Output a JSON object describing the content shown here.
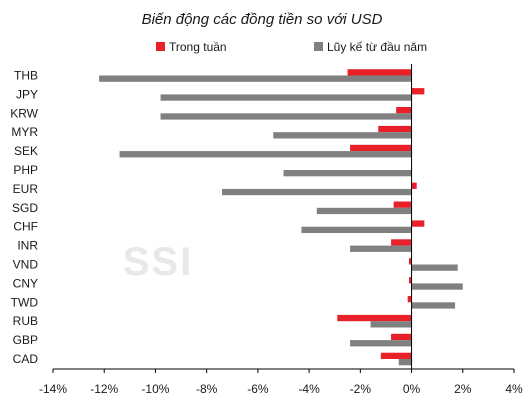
{
  "chart_data": {
    "type": "bar",
    "orientation": "horizontal",
    "title": "Biến động các đồng tiền so với USD",
    "watermark": "SSI",
    "categories": [
      "THB",
      "JPY",
      "KRW",
      "MYR",
      "SEK",
      "PHP",
      "EUR",
      "SGD",
      "CHF",
      "INR",
      "VND",
      "CNY",
      "TWD",
      "RUB",
      "GBP",
      "CAD"
    ],
    "series": [
      {
        "name": "Trong tuần",
        "color": "#e8202a",
        "values": [
          -2.5,
          0.5,
          -0.6,
          -1.3,
          -2.4,
          0.0,
          0.2,
          -0.7,
          0.5,
          -0.8,
          -0.1,
          -0.1,
          -0.15,
          -2.9,
          -0.8,
          -1.2
        ]
      },
      {
        "name": "Lũy kế từ đầu năm",
        "color": "#808080",
        "values": [
          -12.2,
          -9.8,
          -9.8,
          -5.4,
          -11.4,
          -5.0,
          -7.4,
          -3.7,
          -4.3,
          -2.4,
          1.8,
          2.0,
          1.7,
          -1.6,
          -2.4,
          -0.5
        ]
      }
    ],
    "xlim": [
      -14,
      4
    ],
    "xticks": [
      "-14%",
      "-12%",
      "-10%",
      "-8%",
      "-6%",
      "-4%",
      "-2%",
      "0%",
      "2%",
      "4%"
    ],
    "legend_position": "top",
    "grid": false
  }
}
